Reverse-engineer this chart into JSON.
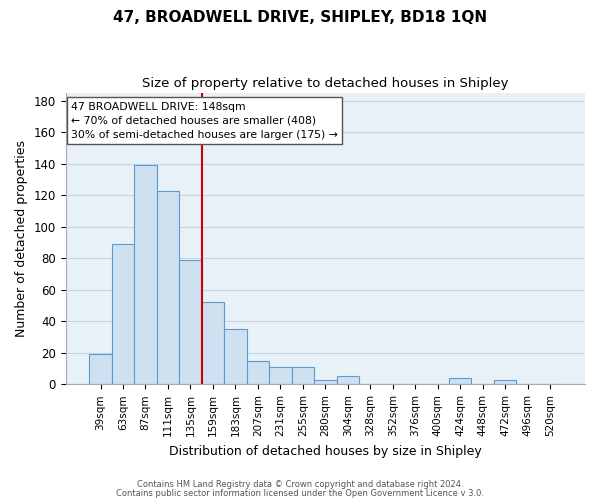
{
  "title": "47, BROADWELL DRIVE, SHIPLEY, BD18 1QN",
  "subtitle": "Size of property relative to detached houses in Shipley",
  "xlabel": "Distribution of detached houses by size in Shipley",
  "ylabel": "Number of detached properties",
  "bar_labels": [
    "39sqm",
    "63sqm",
    "87sqm",
    "111sqm",
    "135sqm",
    "159sqm",
    "183sqm",
    "207sqm",
    "231sqm",
    "255sqm",
    "280sqm",
    "304sqm",
    "328sqm",
    "352sqm",
    "376sqm",
    "400sqm",
    "424sqm",
    "448sqm",
    "472sqm",
    "496sqm",
    "520sqm"
  ],
  "bar_heights": [
    19,
    89,
    139,
    123,
    79,
    52,
    35,
    15,
    11,
    11,
    3,
    5,
    0,
    0,
    0,
    0,
    4,
    0,
    3,
    0,
    0
  ],
  "bar_color": "#cfe0f0",
  "bar_edgecolor": "#5b9bd5",
  "vline_color": "#cc0000",
  "ylim": [
    0,
    185
  ],
  "yticks": [
    0,
    20,
    40,
    60,
    80,
    100,
    120,
    140,
    160,
    180
  ],
  "annotation_title": "47 BROADWELL DRIVE: 148sqm",
  "annotation_line1": "← 70% of detached houses are smaller (408)",
  "annotation_line2": "30% of semi-detached houses are larger (175) →",
  "footer1": "Contains HM Land Registry data © Crown copyright and database right 2024.",
  "footer2": "Contains public sector information licensed under the Open Government Licence v 3.0.",
  "background_color": "#ffffff",
  "plot_bg_color": "#e8f0f8",
  "grid_color": "#c8d4e0"
}
